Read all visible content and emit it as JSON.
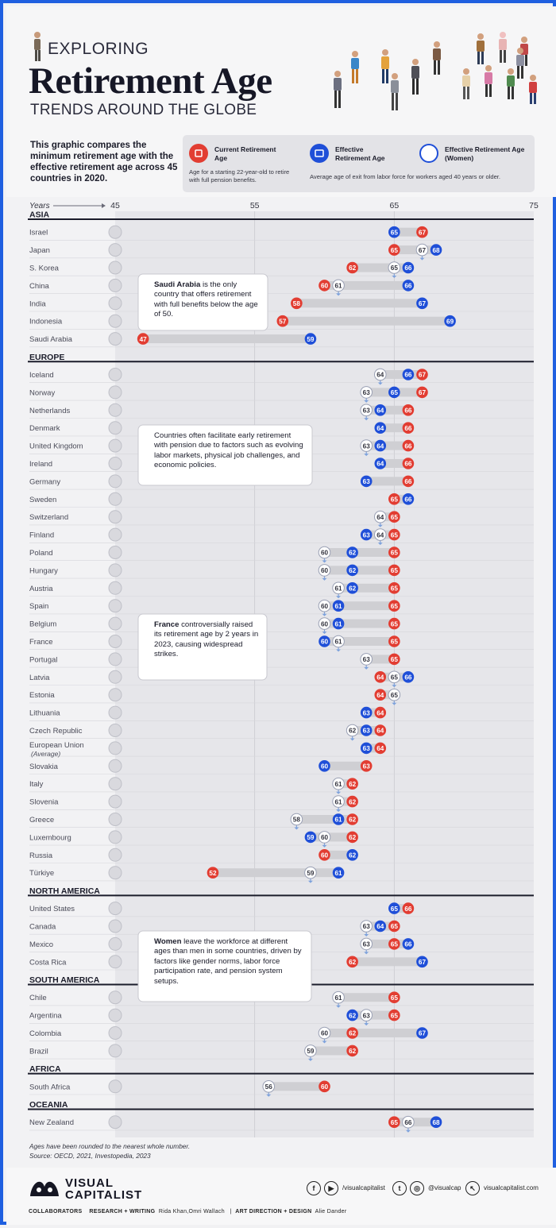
{
  "header": {
    "kicker": "EXPLORING",
    "title": "Retirement Age",
    "subtitle": "TRENDS AROUND THE GLOBE"
  },
  "intro": "This graphic compares the minimum retirement age with the effective retirement age across 45 countries in 2020.",
  "legend": {
    "current_title": "Current Retirement Age",
    "current_desc": "Age for a starting 22-year-old to retire with full pension benefits.",
    "effective_title": "Effective Retirement Age",
    "effective_women_title": "Effective Retirement Age (Women)",
    "effective_desc": "Average age of exit from labor force for workers aged 40 years or older."
  },
  "colors": {
    "current": "#e23d32",
    "effective": "#1f4fd8",
    "women": "#ffffff",
    "women_pin": "#7ea2dc",
    "bar": "#cfcfd3",
    "plot_bg": "#e6e6ea",
    "brand_blue": "#1f5fe0"
  },
  "chart_data": {
    "type": "dot-range",
    "x_axis_label": "Years",
    "xlim": [
      45,
      75
    ],
    "xticks": [
      45,
      55,
      65,
      75
    ],
    "grid": true,
    "groups": [
      {
        "region": "ASIA",
        "countries": [
          {
            "name": "Israel",
            "current": 67,
            "effective": 65,
            "women": null
          },
          {
            "name": "Japan",
            "current": 65,
            "effective": 68,
            "women": 67
          },
          {
            "name": "S. Korea",
            "current": 62,
            "effective": 66,
            "women": 65
          },
          {
            "name": "China",
            "current": 60,
            "effective": 66,
            "women": 61
          },
          {
            "name": "India",
            "current": 58,
            "effective": 67,
            "women": null
          },
          {
            "name": "Indonesia",
            "current": 57,
            "effective": 69,
            "women": null
          },
          {
            "name": "Saudi Arabia",
            "current": 47,
            "effective": 59,
            "women": null
          }
        ]
      },
      {
        "region": "EUROPE",
        "countries": [
          {
            "name": "Iceland",
            "current": 67,
            "effective": 66,
            "women": 64
          },
          {
            "name": "Norway",
            "current": 67,
            "effective": 65,
            "women": 63
          },
          {
            "name": "Netherlands",
            "current": 66,
            "effective": 64,
            "women": 63
          },
          {
            "name": "Denmark",
            "current": 66,
            "effective": 64,
            "women": null
          },
          {
            "name": "United Kingdom",
            "current": 66,
            "effective": 64,
            "women": 63
          },
          {
            "name": "Ireland",
            "current": 66,
            "effective": 64,
            "women": null
          },
          {
            "name": "Germany",
            "current": 66,
            "effective": 63,
            "women": null
          },
          {
            "name": "Sweden",
            "current": 65,
            "effective": 66,
            "women": null
          },
          {
            "name": "Switzerland",
            "current": 65,
            "effective": null,
            "women": 64
          },
          {
            "name": "Finland",
            "current": 65,
            "effective": 63,
            "women": 64
          },
          {
            "name": "Poland",
            "current": 65,
            "effective": 62,
            "women": 60
          },
          {
            "name": "Hungary",
            "current": 65,
            "effective": 62,
            "women": 60
          },
          {
            "name": "Austria",
            "current": 65,
            "effective": 62,
            "women": 61
          },
          {
            "name": "Spain",
            "current": 65,
            "effective": 61,
            "women": 60
          },
          {
            "name": "Belgium",
            "current": 65,
            "effective": 61,
            "women": 60
          },
          {
            "name": "France",
            "current": 65,
            "effective": 60,
            "women": 61
          },
          {
            "name": "Portugal",
            "current": 65,
            "effective": null,
            "women": 63
          },
          {
            "name": "Latvia",
            "current": 64,
            "effective": 66,
            "women": 65
          },
          {
            "name": "Estonia",
            "current": 64,
            "effective": null,
            "women": 65
          },
          {
            "name": "Lithuania",
            "current": 64,
            "effective": 63,
            "women": null
          },
          {
            "name": "Czech Republic",
            "current": 64,
            "effective": 63,
            "women": 62
          },
          {
            "name": "European Union",
            "sub": "(Average)",
            "current": 64,
            "effective": 63,
            "women": null
          },
          {
            "name": "Slovakia",
            "current": 63,
            "effective": 60,
            "women": null
          },
          {
            "name": "Italy",
            "current": 62,
            "effective": null,
            "women": 61
          },
          {
            "name": "Slovenia",
            "current": 62,
            "effective": null,
            "women": 61
          },
          {
            "name": "Greece",
            "current": 62,
            "effective": 61,
            "women": 58
          },
          {
            "name": "Luxembourg",
            "current": 62,
            "effective": 59,
            "women": 60
          },
          {
            "name": "Russia",
            "current": 60,
            "effective": 62,
            "women": null
          },
          {
            "name": "Türkiye",
            "current": 52,
            "effective": 61,
            "women": 59
          }
        ]
      },
      {
        "region": "NORTH AMERICA",
        "countries": [
          {
            "name": "United States",
            "current": 66,
            "effective": 65,
            "women": null
          },
          {
            "name": "Canada",
            "current": 65,
            "effective": 64,
            "women": 63
          },
          {
            "name": "Mexico",
            "current": 65,
            "effective": 66,
            "women": 63
          },
          {
            "name": "Costa Rica",
            "current": 62,
            "effective": 67,
            "women": null
          }
        ]
      },
      {
        "region": "SOUTH AMERICA",
        "countries": [
          {
            "name": "Chile",
            "current": 65,
            "effective": null,
            "women": 61
          },
          {
            "name": "Argentina",
            "current": 65,
            "effective": 62,
            "women": 63
          },
          {
            "name": "Colombia",
            "current": 62,
            "effective": 67,
            "women": 60
          },
          {
            "name": "Brazil",
            "current": 62,
            "effective": null,
            "women": 59
          }
        ]
      },
      {
        "region": "AFRICA",
        "countries": [
          {
            "name": "South Africa",
            "current": 60,
            "effective": null,
            "women": 56
          }
        ]
      },
      {
        "region": "OCEANIA",
        "countries": [
          {
            "name": "New Zealand",
            "current": 65,
            "effective": 68,
            "women": 66
          }
        ]
      }
    ],
    "annotations": [
      {
        "bold": "Saudi Arabia",
        "text": " is the only country that offers retirement with full benefits below the age of 50."
      },
      {
        "bold": "",
        "text": "Countries often facilitate early retirement with pension due to factors such as evolving labor markets, physical job challenges, and economic policies."
      },
      {
        "bold": "France",
        "text": " controversially raised its retirement age by 2 years in 2023, causing widespread strikes."
      },
      {
        "bold": "Women",
        "text": " leave the workforce at different ages than men in some countries, driven by factors like gender norms, labor force participation rate, and pension system setups."
      }
    ]
  },
  "footnote": {
    "line1": "Ages have been rounded to the nearest whole number.",
    "line2": "Source: OECD, 2021, Investopedia, 2023"
  },
  "footer": {
    "brand_line1": "VISUAL",
    "brand_line2": "CAPITALIST",
    "social_fb_yt": "/visualcapitalist",
    "social_tw_ig": "@visualcap",
    "website": "visualcapitalist.com",
    "collab_label": "COLLABORATORS",
    "research_label": "RESEARCH + WRITING",
    "research_names": "Rida Khan,Omri Wallach",
    "art_label": "ART DIRECTION + DESIGN",
    "art_names": "Alie Dander"
  }
}
